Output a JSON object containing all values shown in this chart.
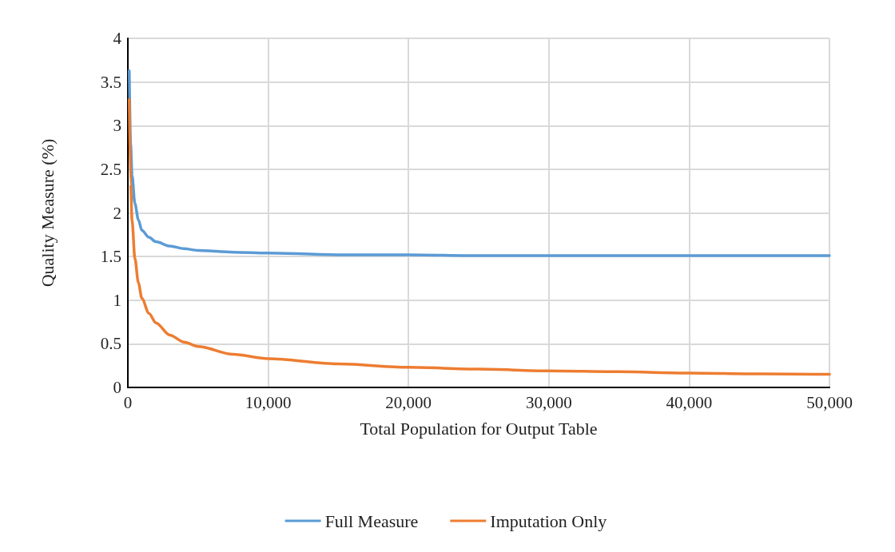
{
  "chart_data": {
    "type": "line",
    "xlabel": "Total Population for Output Table",
    "ylabel": "Quality Measure (%)",
    "xlim": [
      0,
      50000
    ],
    "xticks": [
      0,
      {
        "value": 10000,
        "label": "10,000"
      },
      {
        "value": 20000,
        "label": "20,000"
      },
      {
        "value": 30000,
        "label": "30,000"
      },
      {
        "value": 40000,
        "label": "40,000"
      },
      {
        "value": 50000,
        "label": "50,000"
      }
    ],
    "ylim": [
      0,
      4
    ],
    "yticks": [
      0,
      0.5,
      1,
      1.5,
      2,
      2.5,
      3,
      3.5,
      4
    ],
    "grid": true,
    "legend": "bottom",
    "marker": "none",
    "line_style": "solid",
    "x": [
      100,
      200,
      300,
      500,
      750,
      1000,
      1500,
      2000,
      3000,
      4000,
      5000,
      7500,
      10000,
      15000,
      20000,
      25000,
      30000,
      35000,
      40000,
      45000,
      50000
    ],
    "series": [
      {
        "name": "Full Measure",
        "color": "#5b9bd5",
        "values": [
          3.63,
          2.78,
          2.43,
          2.11,
          1.92,
          1.8,
          1.72,
          1.67,
          1.62,
          1.59,
          1.57,
          1.55,
          1.54,
          1.52,
          1.52,
          1.51,
          1.51,
          1.51,
          1.51,
          1.51,
          1.51
        ]
      },
      {
        "name": "Imputation Only",
        "color": "#ed7d31",
        "values": [
          3.3,
          2.33,
          1.91,
          1.48,
          1.2,
          1.02,
          0.85,
          0.74,
          0.6,
          0.52,
          0.47,
          0.38,
          0.33,
          0.27,
          0.23,
          0.21,
          0.19,
          0.18,
          0.165,
          0.155,
          0.15
        ]
      }
    ]
  }
}
